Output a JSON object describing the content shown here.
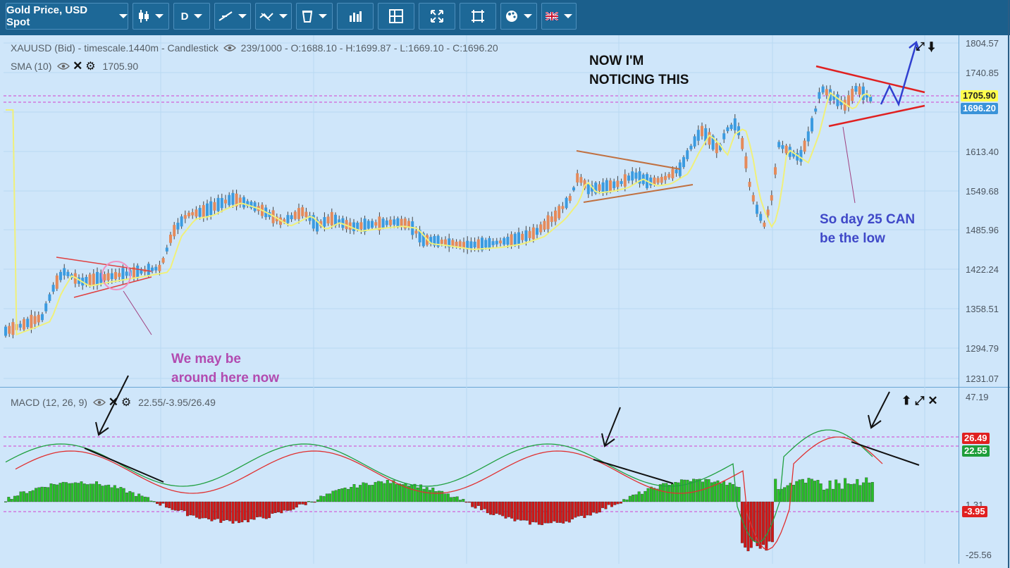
{
  "toolbar": {
    "instrument": "Gold Price, USD Spot",
    "timeframe": "D",
    "buttons": [
      "candlestick-icon",
      "line-draw-icon",
      "crosshair-icon",
      "trash-icon",
      "bar-chart-icon",
      "layout-icon",
      "fullscreen-icon",
      "crop-icon",
      "palette-icon",
      "uk-flag-icon"
    ]
  },
  "main_panel": {
    "header": "XAUUSD (Bid) - timescale.1440m - Candlestick",
    "ohlc": "239/1000 - O:1688.10 - H:1699.87 - L:1669.10 - C:1696.20",
    "sma_label": "SMA (10)",
    "sma_value": "1705.90",
    "y_ticks": [
      "1804.57",
      "1740.85",
      "1613.40",
      "1549.68",
      "1485.96",
      "1422.24",
      "1358.51",
      "1294.79",
      "1231.07"
    ],
    "last_sma_tag": "1705.90",
    "last_price_tag": "1696.20",
    "colors": {
      "up": "#3b9be0",
      "down": "#e58a5a",
      "sma": "#f0f07a"
    }
  },
  "macd_panel": {
    "label": "MACD (12, 26, 9)",
    "values": "22.55/-3.95/26.49",
    "y_ticks": [
      "47.19",
      "1.31",
      "-25.56"
    ],
    "tag_signal": "26.49",
    "tag_macd": "22.55",
    "tag_hist": "-3.95"
  },
  "annotations": {
    "noticing": "NOW I'M\nNOTICING THIS",
    "day25": "So day  25 CAN\nbe the low",
    "around_here": "We may be\naround here now"
  }
}
